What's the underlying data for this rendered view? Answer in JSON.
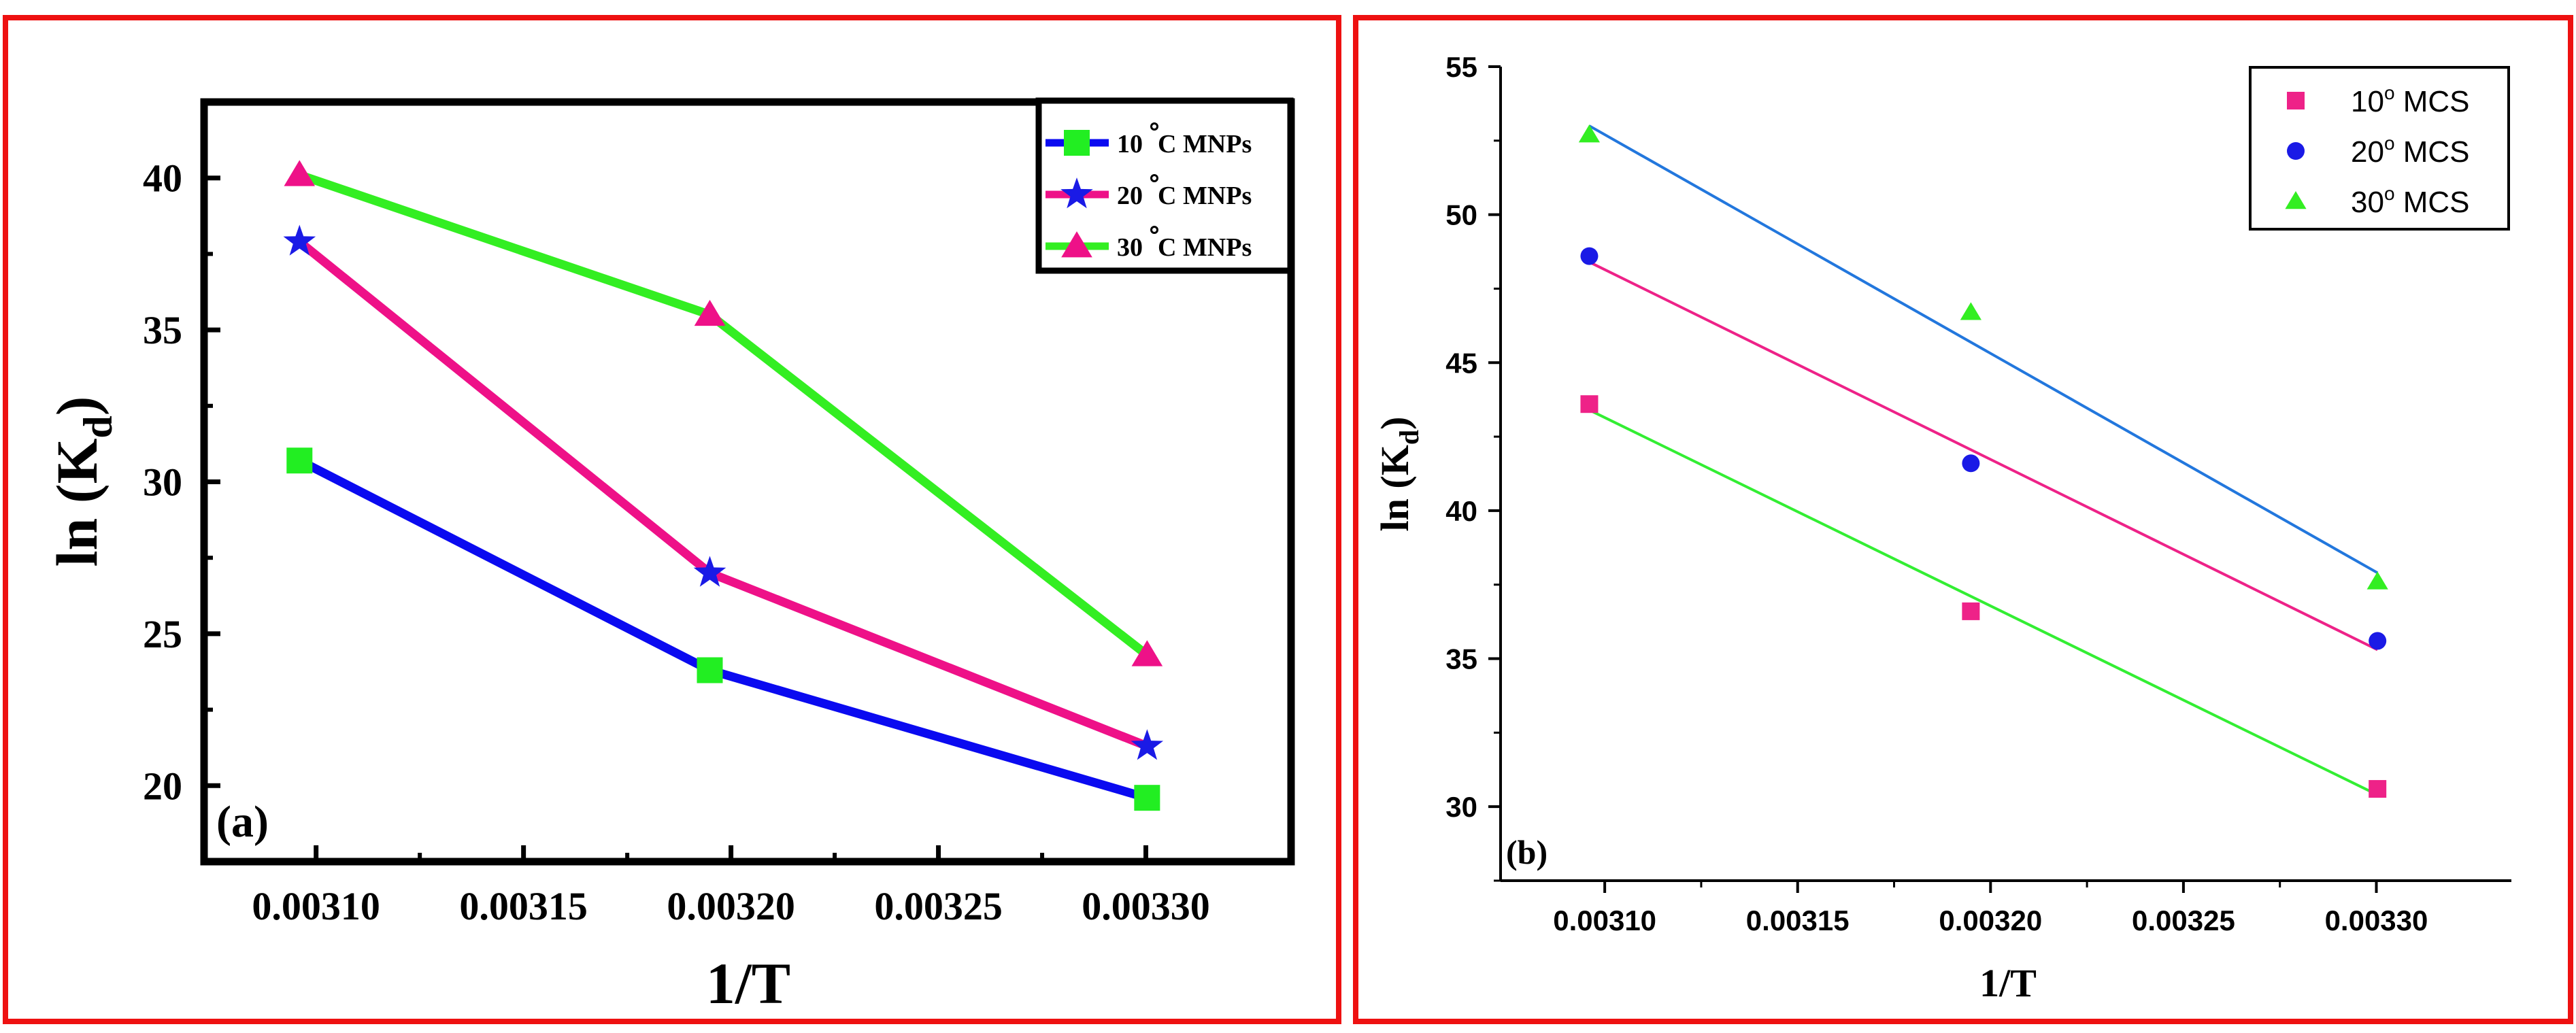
{
  "chart_data": [
    {
      "panel": "(a)",
      "type": "line",
      "xlabel": "1/T",
      "ylabel_main": "ln (K",
      "ylabel_sub": "d",
      "ylabel_close": ")",
      "xlim": [
        0.003073,
        0.003335
      ],
      "ylim": [
        17.5,
        42.5
      ],
      "x_ticks": [
        0.0031,
        0.00315,
        0.0032,
        0.00325,
        0.0033
      ],
      "x_tick_labels": [
        "0.00310",
        "0.00315",
        "0.00320",
        "0.00325",
        "0.00330"
      ],
      "y_ticks": [
        20,
        25,
        30,
        35,
        40
      ],
      "y_tick_labels": [
        "20",
        "25",
        "30",
        "35",
        "40"
      ],
      "x": [
        0.003096,
        0.0031949,
        0.0033003
      ],
      "series": [
        {
          "name": "10°C MNPs",
          "legend_num": "10",
          "legend_unit": "C MNPs",
          "line_color": "#0a0af0",
          "marker": "square",
          "marker_color": "#22ee22",
          "values": [
            30.7,
            23.8,
            19.6
          ]
        },
        {
          "name": "20°C MNPs",
          "legend_num": "20",
          "legend_unit": "C MNPs",
          "line_color": "#ee1188",
          "marker": "star",
          "marker_color": "#1a1ae6",
          "values": [
            37.9,
            27.0,
            21.3
          ]
        },
        {
          "name": "30°C MNPs",
          "legend_num": "30",
          "legend_unit": "C MNPs",
          "line_color": "#33ee22",
          "marker": "triangle",
          "marker_color": "#ee1188",
          "values": [
            40.1,
            35.5,
            24.3
          ]
        }
      ],
      "legend_position": "top-right",
      "grid": false
    },
    {
      "panel": "(b)",
      "type": "scatter",
      "xlabel": "1/T",
      "ylabel_main": "ln (K",
      "ylabel_sub": "d",
      "ylabel_close": ")",
      "xlim": [
        0.003073,
        0.003335
      ],
      "ylim": [
        27.5,
        55
      ],
      "x_ticks": [
        0.0031,
        0.00315,
        0.0032,
        0.00325,
        0.0033
      ],
      "x_tick_labels": [
        "0.00310",
        "0.00315",
        "0.00320",
        "0.00325",
        "0.00330"
      ],
      "y_ticks": [
        30,
        35,
        40,
        45,
        50,
        55
      ],
      "y_tick_labels": [
        "30",
        "35",
        "40",
        "45",
        "50",
        "55"
      ],
      "x": [
        0.003096,
        0.0031949,
        0.0033003
      ],
      "series": [
        {
          "name": "10o MCS",
          "legend_num": "10",
          "legend_sup": "o",
          "legend_unit": "MCS",
          "marker": "square",
          "marker_color": "#ee2288",
          "values": [
            43.6,
            36.6,
            30.6
          ],
          "fit": [
            43.4,
            30.4
          ],
          "fit_color": "#33ee33"
        },
        {
          "name": "20o MCS",
          "legend_num": "20",
          "legend_sup": "o",
          "legend_unit": "MCS",
          "marker": "circle",
          "marker_color": "#1a1ae6",
          "values": [
            48.6,
            41.6,
            35.6
          ],
          "fit": [
            48.4,
            35.3
          ],
          "fit_color": "#ee2288"
        },
        {
          "name": "30o MCS",
          "legend_num": "30",
          "legend_sup": "o",
          "legend_unit": "MCS",
          "marker": "triangle",
          "marker_color": "#33ee22",
          "values": [
            52.7,
            46.7,
            37.6
          ],
          "fit": [
            53.0,
            37.9
          ],
          "fit_color": "#2277dd"
        }
      ],
      "legend_position": "top-right",
      "grid": false
    }
  ],
  "frame_color": "#ee1111"
}
